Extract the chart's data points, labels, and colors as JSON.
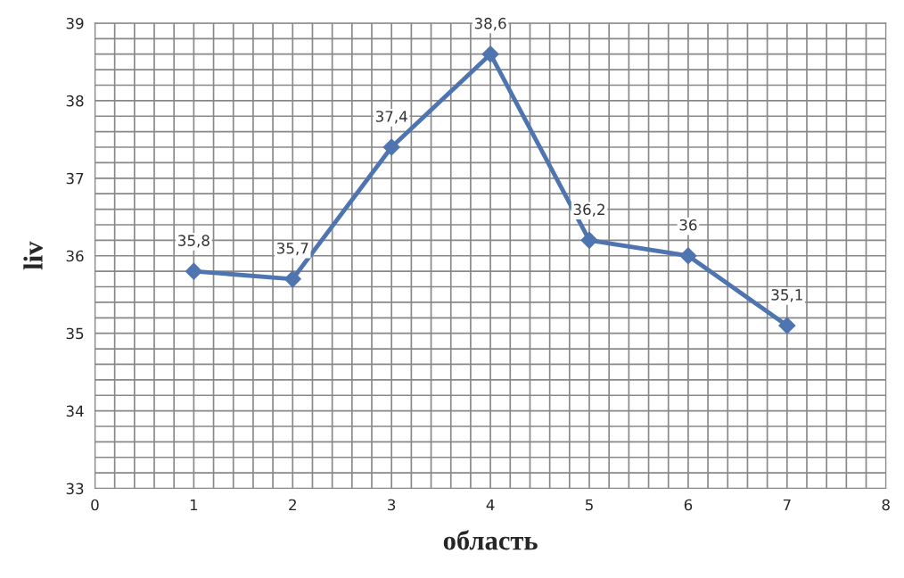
{
  "chart_data": {
    "type": "line",
    "xlabel": "область",
    "ylabel": "liv",
    "x": [
      1,
      2,
      3,
      4,
      5,
      6,
      7
    ],
    "series": [
      {
        "color": "#4f75b0",
        "values": [
          35.8,
          35.7,
          37.4,
          38.6,
          36.2,
          36.0,
          35.1
        ],
        "value_labels": [
          "35,8",
          "35,7",
          "37,4",
          "38,6",
          "36,2",
          "36",
          "35,1"
        ]
      }
    ],
    "xlim": [
      0,
      8
    ],
    "xticks": [
      0,
      1,
      2,
      3,
      4,
      5,
      6,
      7,
      8
    ],
    "ylim": [
      33,
      39
    ],
    "yticks": [
      33,
      34,
      35,
      36,
      37,
      38,
      39
    ],
    "grid": true,
    "marker": "diamond",
    "line_style": "solid"
  }
}
